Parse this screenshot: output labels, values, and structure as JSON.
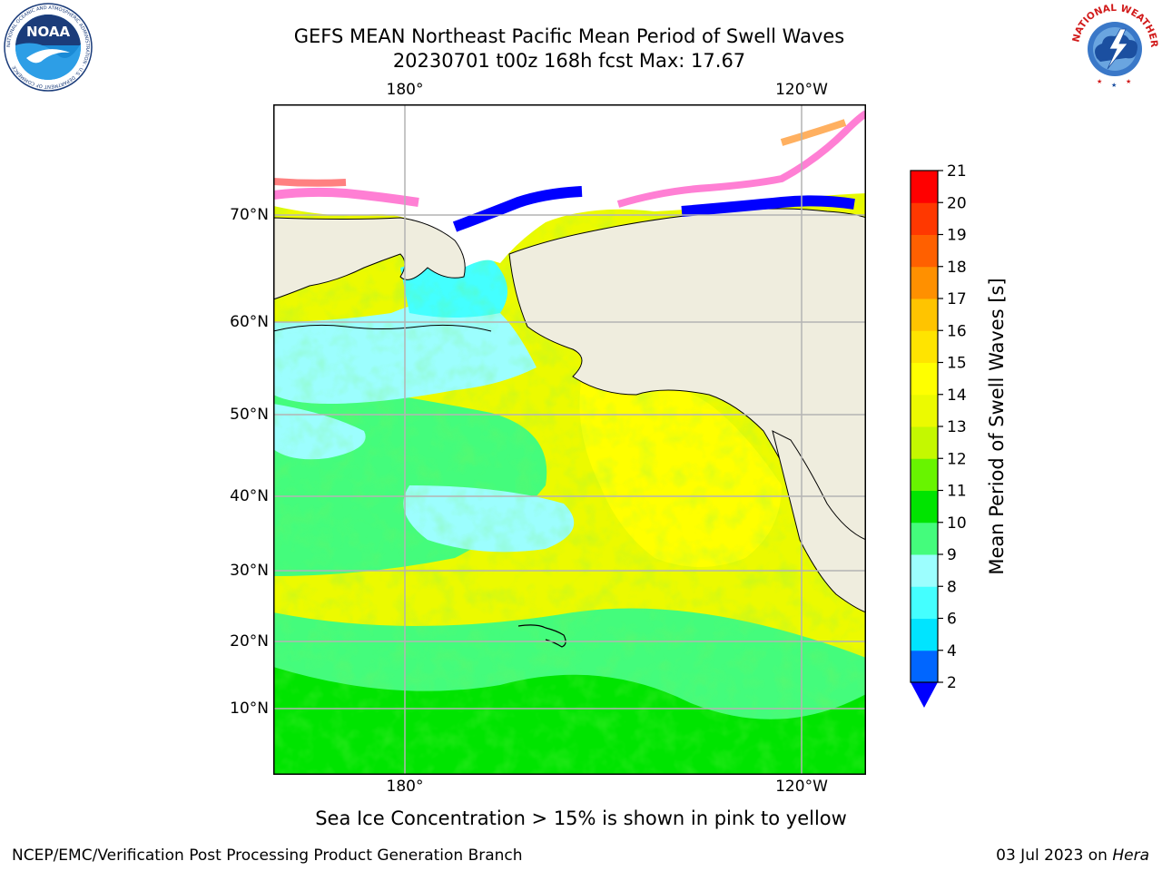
{
  "title": {
    "line1": "GEFS MEAN Northeast Pacific Mean Period of Swell Waves",
    "line2": "20230701 t00z 168h fcst   Max: 17.67"
  },
  "map": {
    "lon_labels": [
      "180°",
      "120°W"
    ],
    "lat_labels": [
      "70°N",
      "60°N",
      "50°N",
      "40°N",
      "30°N",
      "20°N",
      "10°N"
    ],
    "land_color": "#efedde",
    "gridline_color": "#b4b4b4"
  },
  "colorbar": {
    "label": "Mean Period of Swell Waves [s]",
    "ticks": [
      "21",
      "20",
      "19",
      "18",
      "17",
      "16",
      "15",
      "14",
      "13",
      "12",
      "11",
      "10",
      "9",
      "8",
      "6",
      "4",
      "2"
    ],
    "colors_bottom_to_top": [
      "#0066ff",
      "#00e4ff",
      "#44ffff",
      "#9cfefe",
      "#44fc7c",
      "#00e400",
      "#68f400",
      "#c4f800",
      "#ecfa00",
      "#ffff00",
      "#ffe400",
      "#ffc400",
      "#ff9000",
      "#ff6000",
      "#ff3800",
      "#ff0000"
    ],
    "extend_color": "#0000ff"
  },
  "note": "Sea Ice Concentration > 15% is shown in pink to yellow",
  "footer": {
    "left": "NCEP/EMC/Verification Post Processing Product Generation Branch",
    "right_prefix": "03 Jul 2023 on ",
    "right_host": "Hera"
  },
  "logos": {
    "noaa": "NOAA",
    "noaa_ring": "NATIONAL OCEANIC AND ATMOSPHERIC ADMINISTRATION · U.S. DEPARTMENT OF COMMERCE",
    "nws_ring": "NATIONAL WEATHER SERVICE"
  }
}
